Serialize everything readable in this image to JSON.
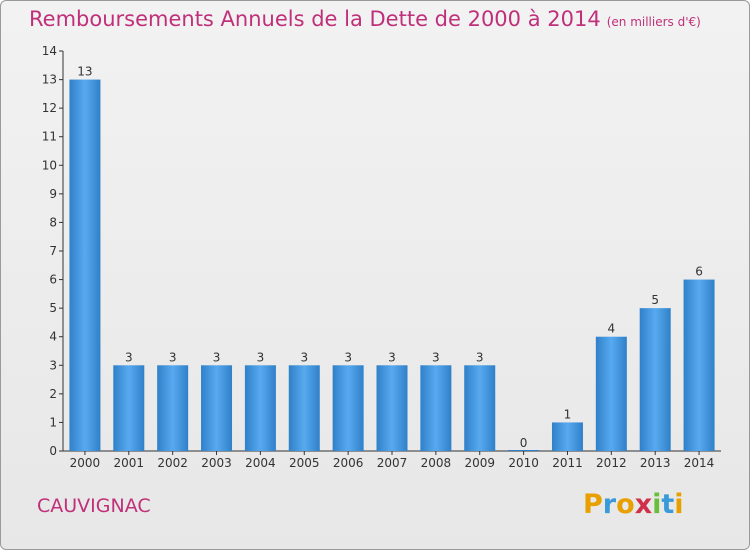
{
  "title": "Remboursements Annuels de la Dette de 2000 à 2014",
  "subtitle": "(en milliers d'€)",
  "town": "CAUVIGNAC",
  "logo": {
    "letters": [
      "P",
      "r",
      "o",
      "x",
      "i",
      "t",
      "i"
    ],
    "colors": [
      "#e8a000",
      "#3a9ad9",
      "#e8a000",
      "#d0304a",
      "#6abf3a",
      "#3a9ad9",
      "#e8a000"
    ]
  },
  "chart_data": {
    "type": "bar",
    "categories": [
      "2000",
      "2001",
      "2002",
      "2003",
      "2004",
      "2005",
      "2006",
      "2007",
      "2008",
      "2009",
      "2010",
      "2011",
      "2012",
      "2013",
      "2014"
    ],
    "values": [
      13,
      3,
      3,
      3,
      3,
      3,
      3,
      3,
      3,
      3,
      0,
      1,
      4,
      5,
      6
    ],
    "ylim": [
      0,
      14
    ],
    "yticks": [
      0,
      1,
      2,
      3,
      4,
      5,
      6,
      7,
      8,
      9,
      10,
      11,
      12,
      13,
      14
    ],
    "ytick_labels": [
      "0",
      "1",
      "2",
      "3",
      "4",
      "5",
      "6",
      "7",
      "8",
      "9",
      "10",
      "11",
      "12",
      "13",
      "14"
    ],
    "bar_color": "#3a8fd6",
    "grid": false
  }
}
